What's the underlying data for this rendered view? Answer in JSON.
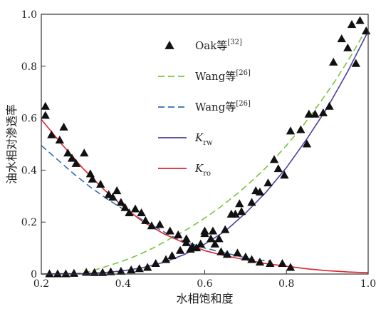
{
  "chart_data": {
    "type": "scatter",
    "title": "",
    "xlabel": "水相饱和度",
    "ylabel": "油水相对渗透率",
    "xlim": [
      0.2,
      1.0
    ],
    "ylim": [
      0,
      1.0
    ],
    "xticks": [
      "0.2",
      "0.4",
      "0.6",
      "0.8",
      "1.0"
    ],
    "yticks": [
      "0",
      "0.2",
      "0.4",
      "0.6",
      "0.8",
      "1.0"
    ],
    "grid": false,
    "legend_placement": "upper-left-center",
    "legend": [
      {
        "label": "Oak等",
        "sup": "[32]",
        "style": "triangle-marker",
        "color": "#111111"
      },
      {
        "label": "Wang等",
        "sup": "[26]",
        "style": "dashed-line",
        "color": "#7cc242"
      },
      {
        "label": "Wang等",
        "sup": "[26]",
        "style": "dashed-line",
        "color": "#2f6db5"
      },
      {
        "label": "K",
        "sub": "rw",
        "style": "solid-line",
        "color": "#4b3f9e"
      },
      {
        "label": "K",
        "sub": "ro",
        "style": "solid-line",
        "color": "#e0232b"
      }
    ],
    "series": [
      {
        "name": "Oak等",
        "kind": "scatter",
        "color": "#111111",
        "points": [
          [
            0.21,
            0.645
          ],
          [
            0.21,
            0.61
          ],
          [
            0.225,
            0.535
          ],
          [
            0.245,
            0.515
          ],
          [
            0.255,
            0.565
          ],
          [
            0.265,
            0.465
          ],
          [
            0.275,
            0.445
          ],
          [
            0.285,
            0.425
          ],
          [
            0.305,
            0.465
          ],
          [
            0.32,
            0.385
          ],
          [
            0.325,
            0.365
          ],
          [
            0.345,
            0.345
          ],
          [
            0.365,
            0.305
          ],
          [
            0.375,
            0.295
          ],
          [
            0.385,
            0.32
          ],
          [
            0.395,
            0.275
          ],
          [
            0.405,
            0.255
          ],
          [
            0.415,
            0.235
          ],
          [
            0.43,
            0.25
          ],
          [
            0.445,
            0.235
          ],
          [
            0.455,
            0.205
          ],
          [
            0.47,
            0.185
          ],
          [
            0.49,
            0.19
          ],
          [
            0.515,
            0.165
          ],
          [
            0.535,
            0.15
          ],
          [
            0.555,
            0.12
          ],
          [
            0.57,
            0.105
          ],
          [
            0.59,
            0.115
          ],
          [
            0.6,
            0.165
          ],
          [
            0.615,
            0.135
          ],
          [
            0.625,
            0.115
          ],
          [
            0.64,
            0.085
          ],
          [
            0.655,
            0.075
          ],
          [
            0.68,
            0.08
          ],
          [
            0.7,
            0.065
          ],
          [
            0.715,
            0.055
          ],
          [
            0.735,
            0.045
          ],
          [
            0.76,
            0.04
          ],
          [
            0.79,
            0.04
          ],
          [
            0.81,
            0.025
          ],
          [
            0.22,
            0.0
          ],
          [
            0.24,
            0.0
          ],
          [
            0.26,
            0.0
          ],
          [
            0.28,
            0.002
          ],
          [
            0.31,
            0.006
          ],
          [
            0.33,
            0.005
          ],
          [
            0.35,
            0.005
          ],
          [
            0.37,
            0.008
          ],
          [
            0.395,
            0.01
          ],
          [
            0.42,
            0.015
          ],
          [
            0.44,
            0.02
          ],
          [
            0.46,
            0.025
          ],
          [
            0.48,
            0.04
          ],
          [
            0.505,
            0.055
          ],
          [
            0.52,
            0.07
          ],
          [
            0.54,
            0.09
          ],
          [
            0.555,
            0.135
          ],
          [
            0.565,
            0.095
          ],
          [
            0.58,
            0.1
          ],
          [
            0.6,
            0.155
          ],
          [
            0.62,
            0.165
          ],
          [
            0.635,
            0.135
          ],
          [
            0.65,
            0.17
          ],
          [
            0.665,
            0.23
          ],
          [
            0.675,
            0.23
          ],
          [
            0.685,
            0.27
          ],
          [
            0.69,
            0.24
          ],
          [
            0.715,
            0.275
          ],
          [
            0.725,
            0.32
          ],
          [
            0.735,
            0.315
          ],
          [
            0.755,
            0.35
          ],
          [
            0.77,
            0.44
          ],
          [
            0.78,
            0.405
          ],
          [
            0.795,
            0.38
          ],
          [
            0.81,
            0.55
          ],
          [
            0.835,
            0.555
          ],
          [
            0.85,
            0.5
          ],
          [
            0.855,
            0.615
          ],
          [
            0.87,
            0.615
          ],
          [
            0.89,
            0.62
          ],
          [
            0.905,
            0.645
          ],
          [
            0.915,
            0.815
          ],
          [
            0.935,
            0.905
          ],
          [
            0.95,
            0.87
          ],
          [
            0.96,
            0.96
          ],
          [
            0.97,
            0.81
          ],
          [
            0.98,
            0.975
          ],
          [
            0.995,
            0.935
          ]
        ]
      },
      {
        "name": "Wang等 (Krw)",
        "kind": "dashed",
        "color": "#7cc242",
        "x": [
          0.28,
          0.32,
          0.36,
          0.4,
          0.44,
          0.48,
          0.52,
          0.56,
          0.6,
          0.64,
          0.68,
          0.72,
          0.76,
          0.8,
          0.84,
          0.88,
          0.92,
          0.96,
          1.0
        ],
        "values": [
          0.0,
          0.01,
          0.03,
          0.05,
          0.075,
          0.105,
          0.14,
          0.175,
          0.215,
          0.26,
          0.31,
          0.365,
          0.425,
          0.495,
          0.57,
          0.655,
          0.745,
          0.845,
          0.955
        ]
      },
      {
        "name": "Wang等 (Kro)",
        "kind": "dashed",
        "color": "#2f6db5",
        "x": [
          0.2,
          0.24,
          0.28,
          0.32,
          0.36,
          0.4,
          0.44,
          0.48,
          0.52,
          0.56,
          0.6,
          0.64,
          0.68,
          0.72,
          0.76
        ],
        "values": [
          0.495,
          0.44,
          0.385,
          0.335,
          0.29,
          0.25,
          0.215,
          0.18,
          0.145,
          0.12,
          0.1,
          0.085,
          0.07,
          0.055,
          0.05
        ]
      },
      {
        "name": "Krw",
        "kind": "solid",
        "color": "#4b3f9e",
        "x": [
          0.2,
          0.25,
          0.3,
          0.35,
          0.4,
          0.45,
          0.5,
          0.55,
          0.6,
          0.65,
          0.7,
          0.75,
          0.8,
          0.85,
          0.9,
          0.95,
          1.0
        ],
        "values": [
          0.0,
          0.001,
          0.002,
          0.005,
          0.012,
          0.025,
          0.045,
          0.075,
          0.115,
          0.165,
          0.235,
          0.315,
          0.41,
          0.52,
          0.64,
          0.78,
          0.935
        ]
      },
      {
        "name": "Kro",
        "kind": "solid",
        "color": "#e0232b",
        "x": [
          0.2,
          0.25,
          0.3,
          0.35,
          0.4,
          0.45,
          0.5,
          0.55,
          0.6,
          0.65,
          0.7,
          0.75,
          0.8,
          0.85,
          0.9,
          0.95,
          1.0
        ],
        "values": [
          0.595,
          0.5,
          0.41,
          0.33,
          0.26,
          0.2,
          0.155,
          0.12,
          0.09,
          0.07,
          0.055,
          0.04,
          0.03,
          0.02,
          0.013,
          0.008,
          0.005
        ]
      }
    ]
  }
}
